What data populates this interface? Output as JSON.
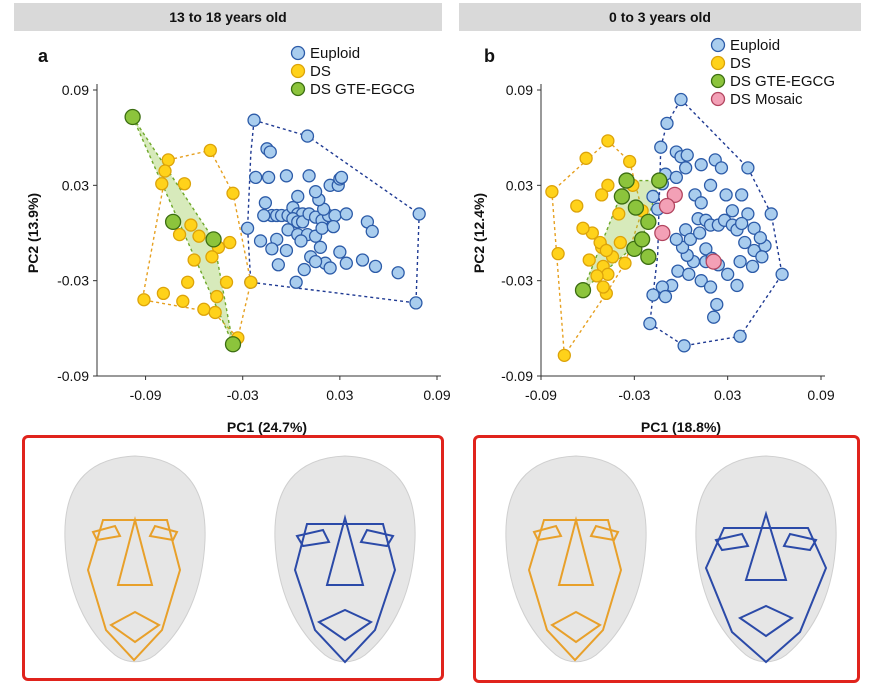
{
  "headers": {
    "left": "13 to 18 years old",
    "right": "0 to 3 years old"
  },
  "colors": {
    "euploid_fill": "#a9cdee",
    "euploid_stroke": "#2c5ba8",
    "ds_fill": "#ffd21a",
    "ds_stroke": "#dca30a",
    "egcg_fill": "#8cc43c",
    "egcg_stroke": "#3c6e12",
    "mosaic_fill": "#f3a0b6",
    "mosaic_stroke": "#b2455f",
    "hull_euploid": "#1f3a93",
    "hull_ds": "#e6a020",
    "frame": "#e0231c"
  },
  "chart_data": [
    {
      "type": "scatter",
      "panel_label": "a",
      "xlabel": "PC1 (24.7%)",
      "ylabel": "PC2 (13.9%)",
      "xlim": [
        -0.12,
        0.09
      ],
      "ylim": [
        -0.09,
        0.09
      ],
      "xticks": [
        -0.09,
        -0.03,
        0.03,
        0.09
      ],
      "yticks": [
        0.09,
        0.03,
        -0.03,
        -0.09
      ],
      "xtick_labels": [
        "-0.09",
        "-0.03",
        "0.03",
        "0.09"
      ],
      "ytick_labels": [
        "0.09",
        "0.03",
        "-0.03",
        "-0.09"
      ],
      "legend": [
        "Euploid",
        "DS",
        "DS GTE-EGCG"
      ],
      "series": [
        {
          "name": "Euploid",
          "key": "euploid",
          "hull": [
            [
              -0.023,
              0.071
            ],
            [
              0.01,
              0.061
            ],
            [
              0.079,
              0.012
            ],
            [
              0.077,
              -0.044
            ],
            [
              -0.025,
              -0.031
            ],
            [
              -0.027,
              0.003
            ],
            [
              -0.025,
              0.05
            ]
          ],
          "points": [
            [
              -0.023,
              0.071
            ],
            [
              -0.015,
              0.053
            ],
            [
              -0.013,
              0.051
            ],
            [
              -0.014,
              0.035
            ],
            [
              -0.003,
              0.036
            ],
            [
              -0.022,
              0.035
            ],
            [
              -0.016,
              0.019
            ],
            [
              -0.012,
              0.011
            ],
            [
              -0.017,
              0.011
            ],
            [
              -0.009,
              0.011
            ],
            [
              -0.006,
              0.011
            ],
            [
              -0.002,
              0.011
            ],
            [
              0.001,
              0.016
            ],
            [
              0.004,
              0.012
            ],
            [
              0.007,
              0.012
            ],
            [
              0.001,
              0.009
            ],
            [
              0.004,
              0.007
            ],
            [
              0.007,
              0.007
            ],
            [
              0.011,
              0.012
            ],
            [
              0.015,
              0.01
            ],
            [
              0.019,
              0.008
            ],
            [
              0.023,
              0.011
            ],
            [
              0.027,
              0.011
            ],
            [
              0.02,
              0.015
            ],
            [
              0.017,
              0.021
            ],
            [
              0.015,
              0.026
            ],
            [
              0.024,
              0.03
            ],
            [
              0.029,
              0.03
            ],
            [
              0.03,
              0.034
            ],
            [
              0.031,
              0.035
            ],
            [
              0.011,
              0.036
            ],
            [
              0.004,
              0.023
            ],
            [
              0.01,
              0.061
            ],
            [
              -0.002,
              0.002
            ],
            [
              0.004,
              -0.001
            ],
            [
              0.01,
              -0.001
            ],
            [
              0.015,
              -0.002
            ],
            [
              0.019,
              0.003
            ],
            [
              0.026,
              0.004
            ],
            [
              0.034,
              0.012
            ],
            [
              0.047,
              0.007
            ],
            [
              0.05,
              0.001
            ],
            [
              0.079,
              0.012
            ],
            [
              -0.009,
              -0.004
            ],
            [
              -0.003,
              -0.011
            ],
            [
              0.006,
              -0.005
            ],
            [
              0.012,
              -0.015
            ],
            [
              0.018,
              -0.009
            ],
            [
              0.021,
              -0.019
            ],
            [
              0.024,
              -0.022
            ],
            [
              0.03,
              -0.012
            ],
            [
              0.034,
              -0.019
            ],
            [
              0.044,
              -0.017
            ],
            [
              0.052,
              -0.021
            ],
            [
              0.066,
              -0.025
            ],
            [
              0.077,
              -0.044
            ],
            [
              -0.012,
              -0.01
            ],
            [
              -0.008,
              -0.02
            ],
            [
              0.003,
              -0.031
            ],
            [
              0.008,
              -0.023
            ],
            [
              0.015,
              -0.018
            ],
            [
              -0.025,
              -0.031
            ],
            [
              -0.027,
              0.003
            ],
            [
              -0.019,
              -0.005
            ]
          ]
        },
        {
          "name": "DS",
          "key": "ds",
          "hull": [
            [
              -0.076,
              0.046
            ],
            [
              -0.05,
              0.052
            ],
            [
              -0.036,
              0.025
            ],
            [
              -0.025,
              -0.031
            ],
            [
              -0.033,
              -0.066
            ],
            [
              -0.048,
              -0.05
            ],
            [
              -0.092,
              -0.042
            ]
          ],
          "points": [
            [
              -0.076,
              0.046
            ],
            [
              -0.05,
              0.052
            ],
            [
              -0.066,
              0.031
            ],
            [
              -0.08,
              0.031
            ],
            [
              -0.036,
              0.025
            ],
            [
              -0.062,
              0.005
            ],
            [
              -0.069,
              -0.001
            ],
            [
              -0.057,
              -0.002
            ],
            [
              -0.045,
              -0.009
            ],
            [
              -0.049,
              -0.015
            ],
            [
              -0.06,
              -0.017
            ],
            [
              -0.038,
              -0.006
            ],
            [
              -0.064,
              -0.031
            ],
            [
              -0.079,
              -0.038
            ],
            [
              -0.091,
              -0.042
            ],
            [
              -0.067,
              -0.043
            ],
            [
              -0.054,
              -0.048
            ],
            [
              -0.046,
              -0.04
            ],
            [
              -0.033,
              -0.066
            ],
            [
              -0.025,
              -0.031
            ],
            [
              -0.047,
              -0.05
            ],
            [
              -0.078,
              0.039
            ],
            [
              -0.04,
              -0.031
            ]
          ]
        },
        {
          "name": "DS GTE-EGCG",
          "key": "egcg",
          "hull": [
            [
              -0.098,
              0.073
            ],
            [
              -0.036,
              -0.07
            ],
            [
              -0.048,
              -0.004
            ]
          ],
          "points": [
            [
              -0.098,
              0.073
            ],
            [
              -0.073,
              0.007
            ],
            [
              -0.048,
              -0.004
            ],
            [
              -0.036,
              -0.07
            ]
          ]
        }
      ]
    },
    {
      "type": "scatter",
      "panel_label": "b",
      "xlabel": "PC1 (18.8%)",
      "ylabel": "PC2 (12.4%)",
      "xlim": [
        -0.09,
        0.09
      ],
      "ylim": [
        -0.09,
        0.09
      ],
      "xticks": [
        -0.09,
        -0.03,
        0.03,
        0.09
      ],
      "yticks": [
        0.09,
        0.03,
        -0.03,
        -0.09
      ],
      "xtick_labels": [
        "-0.09",
        "-0.03",
        "0.03",
        "0.09"
      ],
      "ytick_labels": [
        "0.09",
        "0.03",
        "-0.03",
        "-0.09"
      ],
      "legend": [
        "Euploid",
        "DS",
        "DS GTE-EGCG",
        "DS Mosaic"
      ],
      "series": [
        {
          "name": "Euploid",
          "key": "euploid",
          "hull": [
            [
              0.0,
              0.084
            ],
            [
              0.043,
              0.041
            ],
            [
              0.058,
              0.012
            ],
            [
              0.065,
              -0.026
            ],
            [
              0.038,
              -0.065
            ],
            [
              0.002,
              -0.071
            ],
            [
              -0.02,
              -0.057
            ],
            [
              -0.018,
              -0.039
            ],
            [
              -0.015,
              -0.014
            ],
            [
              -0.013,
              0.054
            ],
            [
              -0.009,
              0.069
            ]
          ],
          "points": [
            [
              0.0,
              0.084
            ],
            [
              -0.009,
              0.069
            ],
            [
              -0.013,
              0.054
            ],
            [
              -0.003,
              0.051
            ],
            [
              0.0,
              0.048
            ],
            [
              0.004,
              0.049
            ],
            [
              0.013,
              0.043
            ],
            [
              0.022,
              0.046
            ],
            [
              0.026,
              0.041
            ],
            [
              0.043,
              0.041
            ],
            [
              0.003,
              0.041
            ],
            [
              -0.01,
              0.037
            ],
            [
              -0.003,
              0.035
            ],
            [
              -0.012,
              0.031
            ],
            [
              -0.018,
              0.023
            ],
            [
              -0.015,
              0.015
            ],
            [
              0.009,
              0.024
            ],
            [
              0.013,
              0.019
            ],
            [
              0.019,
              0.03
            ],
            [
              0.029,
              0.024
            ],
            [
              0.033,
              0.014
            ],
            [
              0.039,
              0.024
            ],
            [
              0.043,
              0.012
            ],
            [
              0.058,
              0.012
            ],
            [
              0.054,
              -0.008
            ],
            [
              0.065,
              -0.026
            ],
            [
              0.011,
              0.009
            ],
            [
              0.016,
              0.008
            ],
            [
              0.019,
              0.005
            ],
            [
              0.024,
              0.005
            ],
            [
              0.028,
              0.008
            ],
            [
              0.033,
              0.005
            ],
            [
              0.036,
              0.002
            ],
            [
              0.039,
              0.006
            ],
            [
              0.047,
              0.003
            ],
            [
              0.051,
              -0.003
            ],
            [
              0.041,
              -0.006
            ],
            [
              0.047,
              -0.011
            ],
            [
              0.052,
              -0.015
            ],
            [
              0.046,
              -0.021
            ],
            [
              0.038,
              -0.018
            ],
            [
              0.036,
              -0.033
            ],
            [
              0.03,
              -0.026
            ],
            [
              0.024,
              -0.02
            ],
            [
              0.016,
              -0.018
            ],
            [
              0.008,
              -0.018
            ],
            [
              0.004,
              -0.014
            ],
            [
              0.001,
              -0.009
            ],
            [
              -0.003,
              -0.004
            ],
            [
              0.003,
              0.002
            ],
            [
              0.006,
              -0.004
            ],
            [
              0.012,
              0.0
            ],
            [
              0.016,
              -0.01
            ],
            [
              0.02,
              -0.016
            ],
            [
              -0.002,
              -0.024
            ],
            [
              0.005,
              -0.026
            ],
            [
              0.013,
              -0.03
            ],
            [
              0.019,
              -0.034
            ],
            [
              -0.006,
              -0.033
            ],
            [
              -0.012,
              -0.034
            ],
            [
              -0.018,
              -0.039
            ],
            [
              -0.02,
              -0.057
            ],
            [
              0.038,
              -0.065
            ],
            [
              0.002,
              -0.071
            ],
            [
              0.021,
              -0.053
            ],
            [
              0.023,
              -0.045
            ],
            [
              -0.01,
              -0.04
            ]
          ]
        },
        {
          "name": "DS",
          "key": "ds",
          "hull": [
            [
              -0.047,
              0.058
            ],
            [
              -0.033,
              0.045
            ],
            [
              -0.025,
              0.014
            ],
            [
              -0.036,
              -0.019
            ],
            [
              -0.048,
              -0.038
            ],
            [
              -0.075,
              -0.077
            ],
            [
              -0.083,
              0.026
            ]
          ],
          "points": [
            [
              -0.047,
              0.058
            ],
            [
              -0.061,
              0.047
            ],
            [
              -0.047,
              0.03
            ],
            [
              -0.051,
              0.024
            ],
            [
              -0.083,
              0.026
            ],
            [
              -0.067,
              0.017
            ],
            [
              -0.04,
              0.012
            ],
            [
              -0.025,
              0.014
            ],
            [
              -0.057,
              0.0
            ],
            [
              -0.063,
              0.003
            ],
            [
              -0.051,
              -0.009
            ],
            [
              -0.052,
              -0.006
            ],
            [
              -0.039,
              -0.006
            ],
            [
              -0.044,
              -0.015
            ],
            [
              -0.048,
              -0.011
            ],
            [
              -0.05,
              -0.021
            ],
            [
              -0.047,
              -0.026
            ],
            [
              -0.036,
              -0.019
            ],
            [
              -0.059,
              -0.017
            ],
            [
              -0.079,
              -0.013
            ],
            [
              -0.048,
              -0.038
            ],
            [
              -0.05,
              -0.034
            ],
            [
              -0.054,
              -0.027
            ],
            [
              -0.075,
              -0.077
            ],
            [
              -0.031,
              0.03
            ],
            [
              -0.033,
              0.045
            ]
          ]
        },
        {
          "name": "DS GTE-EGCG",
          "key": "egcg",
          "hull": [
            [
              -0.063,
              -0.036
            ],
            [
              -0.025,
              -0.004
            ],
            [
              -0.014,
              0.033
            ],
            [
              -0.035,
              0.033
            ]
          ],
          "points": [
            [
              -0.035,
              0.033
            ],
            [
              -0.014,
              0.033
            ],
            [
              -0.038,
              0.023
            ],
            [
              -0.029,
              0.016
            ],
            [
              -0.03,
              -0.01
            ],
            [
              -0.021,
              -0.015
            ],
            [
              -0.025,
              -0.004
            ],
            [
              -0.063,
              -0.036
            ],
            [
              -0.021,
              0.007
            ]
          ]
        },
        {
          "name": "DS Mosaic",
          "key": "mosaic",
          "hull": [],
          "points": [
            [
              -0.004,
              0.024
            ],
            [
              -0.009,
              0.017
            ],
            [
              -0.012,
              0.0
            ],
            [
              0.021,
              -0.018
            ]
          ]
        }
      ]
    }
  ]
}
